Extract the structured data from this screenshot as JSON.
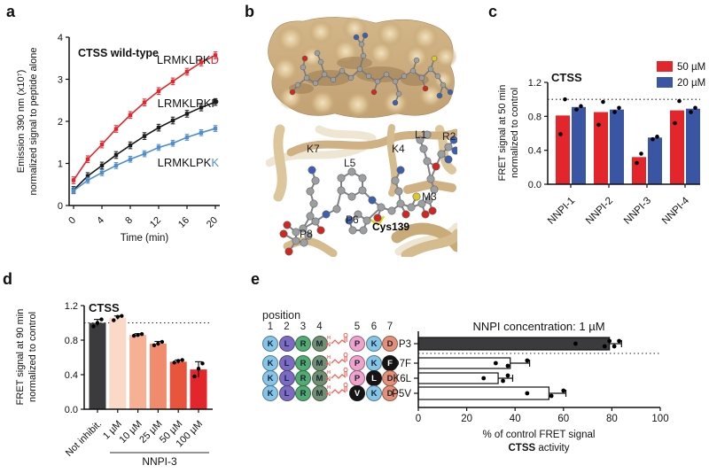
{
  "labels": {
    "a": "a",
    "b": "b",
    "c": "c",
    "d": "d",
    "e": "e"
  },
  "panel_b": {
    "labels": [
      "K7",
      "L5",
      "K4",
      "L1",
      "R2",
      "M3",
      "P6",
      "P8"
    ],
    "site_label": "Cys139"
  },
  "sequences": {
    "position_label": "position",
    "numbers": [
      "1",
      "2",
      "3",
      "4",
      "5",
      "6",
      "7"
    ],
    "color_map": {
      "K": "#85c6e8",
      "L": "#7c6bc4",
      "R": "#52ab71",
      "M": "#6f9071",
      "P": "#efa3cc",
      "D": "#e58f77",
      "V": "#141414",
      "F": "#141414",
      "mutant": "#141414"
    },
    "rows": [
      {
        "name": "P3",
        "residues": [
          "K",
          "L",
          "R",
          "M",
          "P",
          "K",
          "D"
        ]
      },
      {
        "name": "D7F",
        "residues": [
          "K",
          "L",
          "R",
          "M",
          "P",
          "K",
          "F*"
        ]
      },
      {
        "name": "K6L",
        "residues": [
          "K",
          "L",
          "R",
          "M",
          "P",
          "L*",
          "D"
        ]
      },
      {
        "name": "P5V",
        "residues": [
          "K",
          "L",
          "R",
          "M",
          "V*",
          "K",
          "D"
        ]
      }
    ],
    "linker_color": "#e8645c"
  },
  "chart_data": [
    {
      "id": "panel-a",
      "type": "line",
      "title": "CTSS wild-type",
      "xlabel": "Time (min)",
      "ylabel1": "Emission 390 nm (x10⁷)",
      "ylabel2": "normalized signal to peptide alone",
      "x": [
        0,
        2,
        4,
        6,
        8,
        10,
        12,
        14,
        16,
        18,
        20
      ],
      "xticks": [
        0,
        4,
        8,
        12,
        16,
        20
      ],
      "ylim": [
        0,
        4
      ],
      "yticks": [
        0,
        1,
        2,
        3,
        4
      ],
      "series": [
        {
          "name": "LRMKLPKD",
          "label_prefix": "LRMKLPK",
          "label_suffix": "D",
          "suffix_color": "#e2262b",
          "color": "#e2262b",
          "values": [
            0.6,
            1.1,
            1.45,
            1.82,
            2.15,
            2.45,
            2.72,
            2.95,
            3.18,
            3.4,
            3.57
          ],
          "error": 0.08
        },
        {
          "name": "LRMKLPKP",
          "label_prefix": "LRMKLPK",
          "label_suffix": "P",
          "suffix_color": "#1a1a1a",
          "color": "#1a1a1a",
          "values": [
            0.37,
            0.7,
            0.95,
            1.2,
            1.43,
            1.65,
            1.85,
            2.02,
            2.18,
            2.33,
            2.46
          ],
          "error": 0.08
        },
        {
          "name": "LRMKLPKK",
          "label_prefix": "LRMKLPK",
          "label_suffix": "K",
          "suffix_color": "#4d8fcd",
          "color": "#4d8fcd",
          "values": [
            0.35,
            0.6,
            0.78,
            0.95,
            1.1,
            1.23,
            1.38,
            1.48,
            1.62,
            1.73,
            1.83
          ],
          "error": 0.07
        }
      ]
    },
    {
      "id": "panel-c",
      "type": "bar",
      "title": "CTSS",
      "ylabel1": "FRET signal at 50 min",
      "ylabel2": "normalized to control",
      "categories": [
        "NNPI-1",
        "NNPI-2",
        "NNPI-3",
        "NNPI-4"
      ],
      "ylim": [
        0,
        1.2
      ],
      "yticks": [
        0.0,
        0.4,
        0.8,
        1.2
      ],
      "reference_line": 1.0,
      "legend": [
        {
          "label": "50 µM",
          "color": "#e2262b"
        },
        {
          "label": "20 µM",
          "color": "#3a55a4"
        }
      ],
      "series": [
        {
          "name": "50 µM",
          "color": "#e2262b",
          "values": [
            0.81,
            0.85,
            0.32,
            0.87
          ],
          "points": [
            [
              0.59,
              1.0
            ],
            [
              0.7,
              0.97
            ],
            [
              0.25,
              0.36
            ],
            [
              0.72,
              0.98
            ]
          ]
        },
        {
          "name": "20 µM",
          "color": "#3a55a4",
          "values": [
            0.91,
            0.88,
            0.55,
            0.89
          ],
          "points": [
            [
              0.88,
              0.92
            ],
            [
              0.85,
              0.9
            ],
            [
              0.53,
              0.56
            ],
            [
              0.85,
              0.9
            ]
          ]
        }
      ]
    },
    {
      "id": "panel-d",
      "type": "bar",
      "title": "CTSS",
      "ylabel1": "FRET signal at 90 min",
      "ylabel2": "normalized to control",
      "categories": [
        "Not inhibit.",
        "1 µM",
        "10 µM",
        "25 µM",
        "50 µM",
        "100 µM"
      ],
      "group_label": "NNPI-3",
      "ylim": [
        0,
        1.2
      ],
      "yticks": [
        0.0,
        0.4,
        0.8,
        1.2
      ],
      "reference_line": 1.0,
      "bars": [
        {
          "value": 1.0,
          "error": 0.04,
          "color": "#3b3b3d",
          "points": [
            0.96,
            1.0,
            1.04
          ]
        },
        {
          "value": 1.06,
          "error": 0.02,
          "color": "#fbd9c7",
          "points": [
            1.03,
            1.07,
            1.08
          ]
        },
        {
          "value": 0.86,
          "error": 0.015,
          "color": "#f6b195",
          "points": [
            0.85,
            0.86,
            0.87
          ]
        },
        {
          "value": 0.76,
          "error": 0.025,
          "color": "#f08c6d",
          "points": [
            0.74,
            0.76,
            0.78
          ]
        },
        {
          "value": 0.55,
          "error": 0.02,
          "color": "#e8553c",
          "points": [
            0.54,
            0.56,
            0.57
          ]
        },
        {
          "value": 0.46,
          "error": 0.09,
          "color": "#e2262b",
          "points": [
            0.38,
            0.47,
            0.53
          ]
        }
      ]
    },
    {
      "id": "panel-e",
      "type": "horizontal-bar",
      "title": "NNPI concentration: 1 µM",
      "xlabel1": "% of control FRET signal",
      "xlabel2_bold": "CTSS",
      "xlabel2_rest": " activity",
      "categories": [
        "P3",
        "D7F",
        "K6L",
        "P5V"
      ],
      "xlim": [
        0,
        100
      ],
      "xticks": [
        0,
        20,
        40,
        60,
        80,
        100
      ],
      "reference_line_after_first": true,
      "bars": [
        {
          "value": 79,
          "error_hi": 84,
          "color": "#3b3b3d",
          "points": [
            65,
            77,
            79,
            81,
            83
          ]
        },
        {
          "value": 38,
          "error_hi": 46,
          "color": "#ffffff",
          "points": [
            32,
            37,
            45
          ]
        },
        {
          "value": 33,
          "error_hi": 39,
          "color": "#ffffff",
          "points": [
            27,
            35,
            37
          ]
        },
        {
          "value": 54,
          "error_hi": 61,
          "color": "#ffffff",
          "points": [
            45,
            55,
            60
          ]
        }
      ]
    }
  ]
}
